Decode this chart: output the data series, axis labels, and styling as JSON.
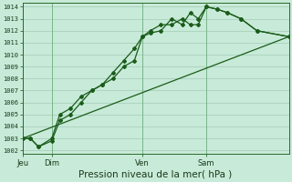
{
  "background_color": "#c8ead8",
  "grid_color": "#a0ccb8",
  "line_color": "#1a5c1a",
  "xlabel": "Pression niveau de la mer( hPa )",
  "xlabel_fontsize": 7.5,
  "ylabel_min": 1002,
  "ylabel_max": 1014,
  "xlim": [
    0,
    100
  ],
  "xtick_positions": [
    0,
    11,
    45,
    69
  ],
  "xtick_labels": [
    "Jeu",
    "Dim",
    "Ven",
    "Sam"
  ],
  "vline_positions": [
    0,
    11,
    45,
    69
  ],
  "line1_x": [
    0,
    3,
    6,
    11,
    14,
    18,
    22,
    26,
    30,
    34,
    38,
    42,
    45,
    48,
    52,
    56,
    60,
    63,
    66,
    69,
    73,
    77,
    82,
    88,
    100
  ],
  "line1_y": [
    1003,
    1003,
    1002.3,
    1002.8,
    1004.5,
    1005,
    1006,
    1007,
    1007.5,
    1008,
    1009,
    1009.5,
    1011.5,
    1011.8,
    1012,
    1013,
    1012.5,
    1013.5,
    1013,
    1014,
    1013.8,
    1013.5,
    1013,
    1012,
    1011.5
  ],
  "line2_x": [
    0,
    3,
    6,
    11,
    14,
    18,
    22,
    26,
    30,
    34,
    38,
    42,
    45,
    48,
    52,
    56,
    60,
    63,
    66,
    69,
    73,
    77,
    82,
    88,
    100
  ],
  "line2_y": [
    1003,
    1003,
    1002.3,
    1003,
    1005,
    1005.5,
    1006.5,
    1007,
    1007.5,
    1008.5,
    1009.5,
    1010.5,
    1011.5,
    1012,
    1012.5,
    1012.5,
    1013,
    1012.5,
    1012.5,
    1014,
    1013.8,
    1013.5,
    1013,
    1012,
    1011.5
  ],
  "line3_x": [
    0,
    100
  ],
  "line3_y": [
    1003,
    1011.5
  ]
}
